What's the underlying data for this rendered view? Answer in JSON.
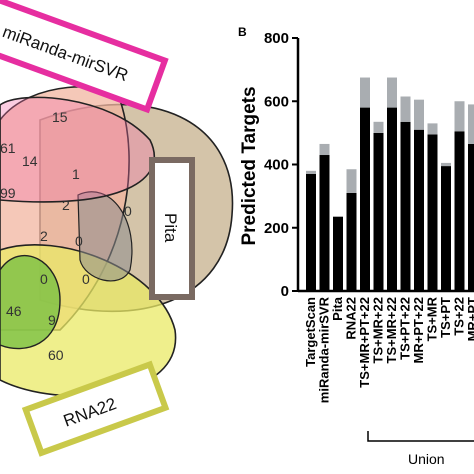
{
  "venn": {
    "sets": [
      {
        "label": "miRanda-mirSVR",
        "color": "#e62ea0"
      },
      {
        "label": "Pita",
        "color": "#7a6a62"
      },
      {
        "label": "RNA22",
        "color": "#c9c94a"
      }
    ],
    "region_values": [
      "15",
      "61",
      "14",
      "1",
      "99",
      "2",
      "0",
      "2",
      "0",
      "0",
      "0",
      "46",
      "9",
      "60"
    ]
  },
  "chart_data": {
    "type": "bar",
    "panel_label": "B",
    "ylabel": "Predicted Targets",
    "ylim": [
      0,
      800
    ],
    "yticks": [
      "0",
      "200",
      "400",
      "600",
      "800"
    ],
    "categories": [
      "TargetScan",
      "miRanda-mirSVR",
      "Pita",
      "RNA22",
      "TS+MR+PT+22",
      "TS+MR+22",
      "TS+MR+22",
      "TS+PT+22",
      "MR+PT+22",
      "TS+MR",
      "TS+PT",
      "TS+22",
      "MR+PT"
    ],
    "series": [
      {
        "color": "#000000",
        "values": [
          370,
          430,
          235,
          310,
          580,
          500,
          580,
          535,
          510,
          495,
          395,
          505,
          465
        ]
      },
      {
        "color": "#a9adb1",
        "values": [
          10,
          35,
          0,
          75,
          95,
          35,
          95,
          80,
          95,
          35,
          10,
          95,
          125
        ]
      }
    ],
    "bracket_label": "Union"
  }
}
